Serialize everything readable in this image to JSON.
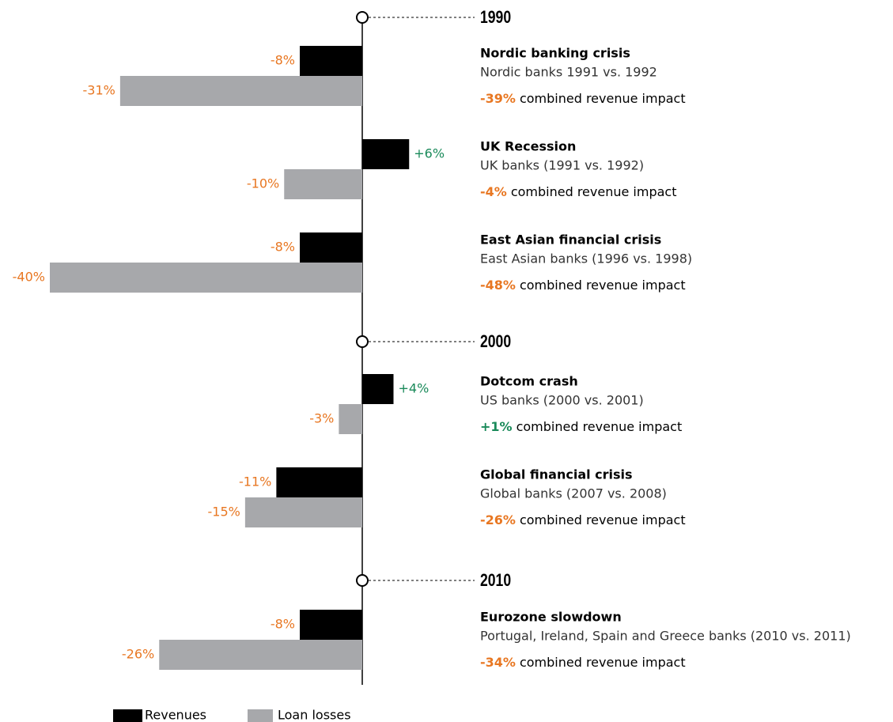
{
  "chart_data": {
    "type": "bar",
    "orientation": "horizontal",
    "timeline_markers": [
      "1990",
      "2000",
      "2010"
    ],
    "categories": [
      "Nordic banking crisis",
      "UK Recession",
      "East Asian financial crisis",
      "Dotcom crash",
      "Global financial crisis",
      "Eurozone slowdown"
    ],
    "subtitles": [
      "Nordic banks 1991 vs. 1992",
      "UK banks (1991 vs. 1992)",
      "East Asian banks (1996 vs. 1998)",
      "US banks (2000 vs. 2001)",
      "Global banks (2007 vs. 2008)",
      "Portugal, Ireland, Spain and Greece banks (2010 vs. 2011)"
    ],
    "impact": [
      -39,
      -4,
      -48,
      1,
      -26,
      -34
    ],
    "impact_labels": [
      "-39%",
      "-4%",
      "-48%",
      "+1%",
      "-26%",
      "-34%"
    ],
    "impact_suffix": "combined revenue impact",
    "series": [
      {
        "name": "Revenues",
        "color": "#000000",
        "values": [
          -8,
          6,
          -8,
          4,
          -11,
          -8
        ],
        "value_labels": [
          "-8%",
          "+6%",
          "-8%",
          "+4%",
          "-11%",
          "-8%"
        ]
      },
      {
        "name": "Loan losses",
        "color": "#a7a8ab",
        "values": [
          -31,
          -10,
          -40,
          -3,
          -15,
          -26
        ],
        "value_labels": [
          "-31%",
          "-10%",
          "-40%",
          "-3%",
          "-15%",
          "-26%"
        ]
      }
    ]
  }
}
